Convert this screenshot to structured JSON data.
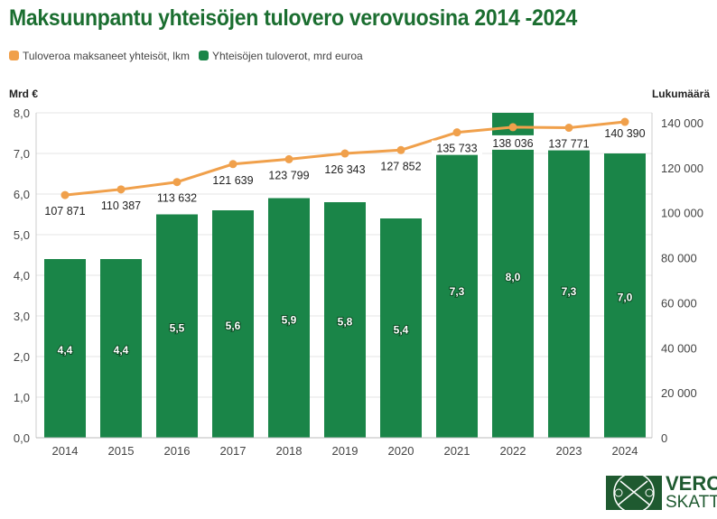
{
  "chart_data": {
    "type": "bar+line",
    "title": "Maksuunpantu yhteisöjen tulovero verovuosina 2014 -2024",
    "ylabel_left": "Mrd €",
    "ylabel_right": "Lukumäärä",
    "categories": [
      "2014",
      "2015",
      "2016",
      "2017",
      "2018",
      "2019",
      "2020",
      "2021",
      "2022",
      "2023",
      "2024"
    ],
    "series": [
      {
        "name": "Yhteisöjen tuloverot, mrd euroa",
        "type": "bar",
        "axis": "left",
        "color": "#1a8548",
        "values": [
          4.4,
          4.4,
          5.5,
          5.6,
          5.9,
          5.8,
          5.4,
          7.3,
          8.0,
          7.3,
          7.0
        ],
        "labels": [
          "4,4",
          "4,4",
          "5,5",
          "5,6",
          "5,9",
          "5,8",
          "5,4",
          "7,3",
          "8,0",
          "7,3",
          "7,0"
        ]
      },
      {
        "name": "Tuloveroa maksaneet yhteisöt, lkm",
        "type": "line",
        "axis": "right",
        "color": "#f0a04b",
        "values": [
          107871,
          110387,
          113632,
          121639,
          123799,
          126343,
          127852,
          135733,
          138036,
          137771,
          140390
        ],
        "labels": [
          "107 871",
          "110 387",
          "113 632",
          "121 639",
          "123 799",
          "126 343",
          "127 852",
          "135 733",
          "138 036",
          "137 771",
          "140 390"
        ]
      }
    ],
    "left_ylim": [
      0,
      8
    ],
    "left_ticks": [
      "0,0",
      "1,0",
      "2,0",
      "3,0",
      "4,0",
      "5,0",
      "6,0",
      "7,0",
      "8,0"
    ],
    "right_ticks": [
      "0",
      "20 000",
      "40 000",
      "60 000",
      "80 000",
      "100 000",
      "120 000",
      "140 000"
    ],
    "grid": true,
    "legend": "top-left"
  },
  "logo": {
    "line1": "VERO",
    "line2": "SKATT"
  }
}
